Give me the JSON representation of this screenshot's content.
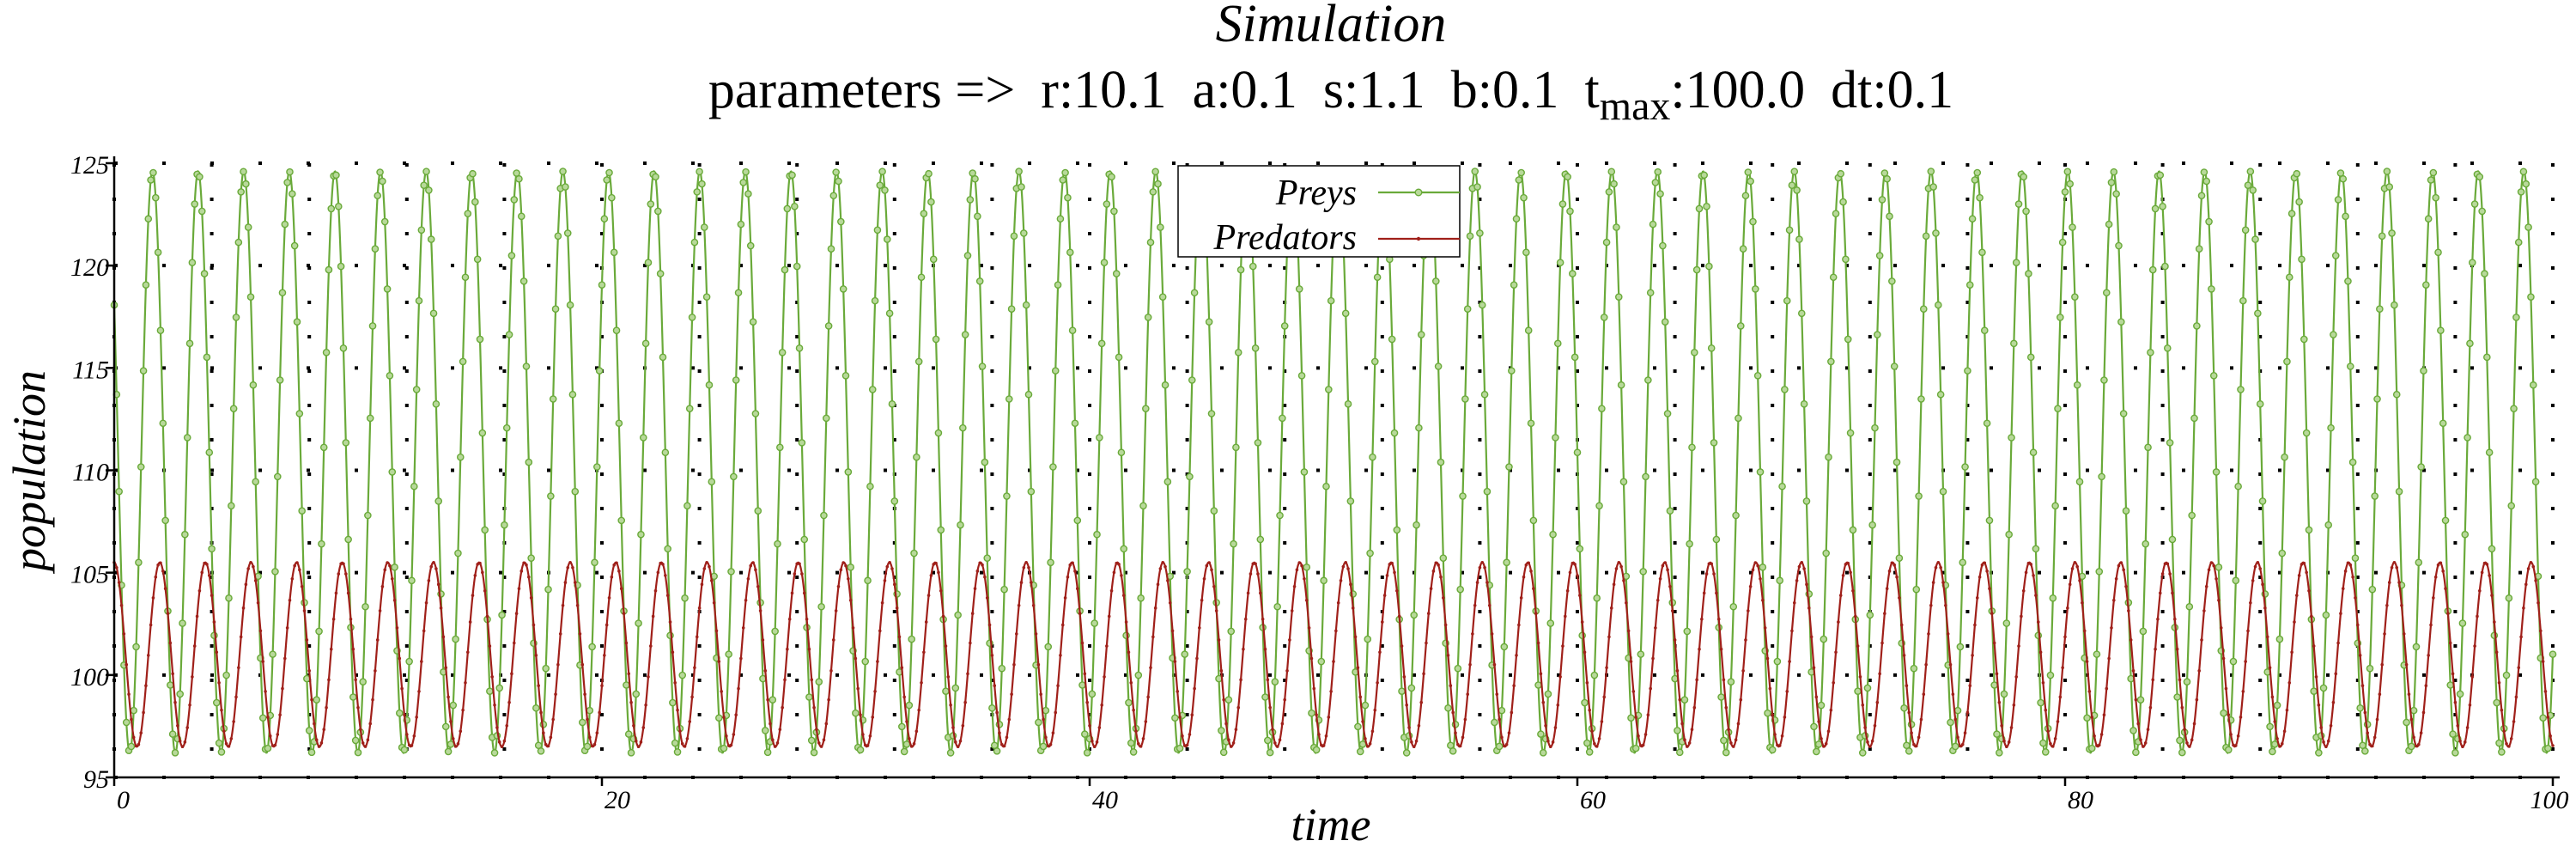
{
  "chart_data": {
    "type": "line",
    "title": "Simulation",
    "subtitle": {
      "prefix": "parameters =>",
      "r": "r:10.1",
      "a": "a:0.1",
      "s": "s:1.1",
      "b": "b:0.1",
      "tmax_base": "t",
      "tmax_sub": "max",
      "tmax_value": ":100.0",
      "dt": "dt:0.1"
    },
    "xlabel": "time",
    "ylabel": "population",
    "xlim": [
      0,
      100
    ],
    "ylim": [
      95,
      125
    ],
    "xticks": [
      0,
      20,
      40,
      60,
      80,
      100
    ],
    "yticks": [
      95,
      100,
      105,
      110,
      115,
      120,
      125
    ],
    "grid": true,
    "legend_position": "top-center",
    "series": [
      {
        "name": "Preys",
        "color": "#6aaa3a",
        "marker": "circle",
        "model": "sinusoid",
        "center": 110.4,
        "amplitude": 14.2,
        "period": 1.87,
        "phase_at_t0": 1.0,
        "sample_dt": 0.1
      },
      {
        "name": "Predators",
        "color": "#a0201a",
        "marker": "dot",
        "model": "sinusoid",
        "center": 101.0,
        "amplitude": 4.5,
        "period": 1.87,
        "phase_at_t0": 0.0,
        "sample_dt": 0.1
      }
    ]
  }
}
